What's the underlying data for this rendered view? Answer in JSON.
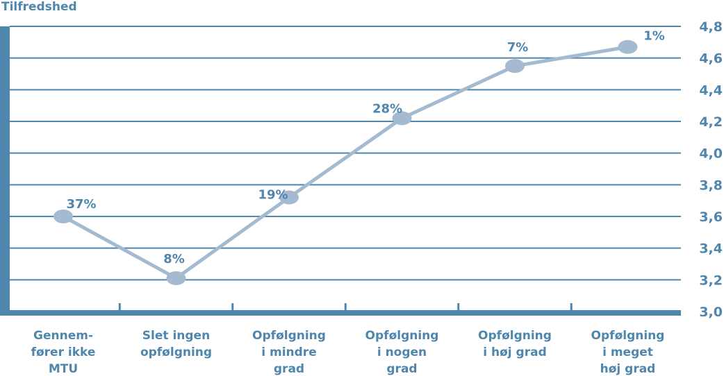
{
  "chart_data": {
    "type": "line",
    "ylabel": "Tilfredshed",
    "ylim": [
      3.0,
      4.8
    ],
    "yticks": [
      "3,0",
      "3,2",
      "3,4",
      "3,6",
      "3,8",
      "4,0",
      "4,2",
      "4,4",
      "4,6",
      "4,8"
    ],
    "y_axis_side": "right",
    "grid": true,
    "categories": [
      [
        "Gennem-",
        "fører ikke",
        "MTU"
      ],
      [
        "Slet ingen",
        "opfølgning"
      ],
      [
        "Opfølgning",
        "i mindre",
        "grad"
      ],
      [
        "Opfølgning",
        "i nogen",
        "grad"
      ],
      [
        "Opfølgning",
        "i høj grad"
      ],
      [
        "Opfølgning",
        "i meget",
        "høj grad"
      ]
    ],
    "series": [
      {
        "values": [
          3.6,
          3.21,
          3.72,
          4.22,
          4.55,
          4.67
        ],
        "labels": [
          "37%",
          "8%",
          "19%",
          "28%",
          "7%",
          "1%"
        ]
      }
    ],
    "colors": {
      "text": "#4f86ad",
      "grid": "#4f86ad",
      "axis": "#4f86ad",
      "line": "#a3bad0",
      "marker": "#a3bad0"
    }
  }
}
